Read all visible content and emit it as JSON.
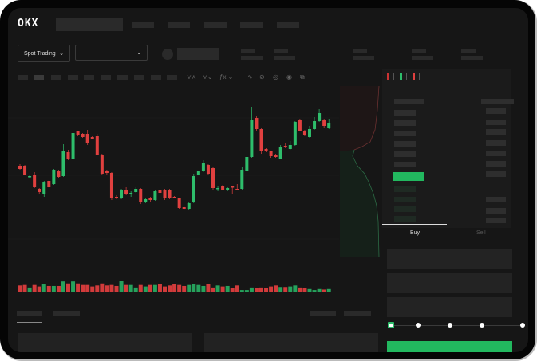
{
  "header": {
    "logo": "OKX"
  },
  "toolbar": {
    "market_type": "Spot Trading"
  },
  "order_panel": {
    "buy_tab": "Buy",
    "sell_tab": "Sell",
    "active_tab": "Buy"
  },
  "colors": {
    "up": "#2ebd6b",
    "down": "#e0403f",
    "background": "#161616",
    "buy_button": "#22b85f"
  },
  "icons": [
    "chevron-down-icon",
    "line-tool-icon",
    "pencil-icon",
    "brush-icon",
    "target-icon",
    "fullscreen-icon",
    "orderbook-both-icon",
    "orderbook-buy-icon",
    "orderbook-sell-icon"
  ],
  "chart_data": {
    "type": "candlestick",
    "title": "",
    "xlabel": "",
    "ylabel": "",
    "ylim": [
      0,
      135
    ],
    "candles": [
      [
        57,
        59,
        52,
        53
      ],
      [
        57,
        58,
        45,
        46
      ],
      [
        43,
        45,
        42,
        44
      ],
      [
        45,
        49,
        29,
        30
      ],
      [
        28,
        29,
        22,
        24
      ],
      [
        22,
        38,
        18,
        37
      ],
      [
        38,
        39,
        29,
        30
      ],
      [
        34,
        53,
        33,
        52
      ],
      [
        51,
        52,
        42,
        43
      ],
      [
        44,
        84,
        43,
        75
      ],
      [
        74,
        77,
        64,
        65
      ],
      [
        65,
        112,
        64,
        98
      ],
      [
        100,
        101,
        94,
        95
      ],
      [
        97,
        98,
        92,
        93
      ],
      [
        97,
        102,
        83,
        85
      ],
      [
        93,
        94,
        90,
        91
      ],
      [
        94,
        97,
        70,
        71
      ],
      [
        71,
        72,
        46,
        47
      ],
      [
        51,
        52,
        45,
        48
      ],
      [
        48,
        49,
        14,
        17
      ],
      [
        18,
        20,
        15,
        16
      ],
      [
        17,
        28,
        15,
        26
      ],
      [
        27,
        30,
        20,
        22
      ],
      [
        23,
        25,
        18,
        23
      ],
      [
        24,
        30,
        23,
        28
      ],
      [
        28,
        29,
        9,
        11
      ],
      [
        11,
        16,
        10,
        15
      ],
      [
        17,
        18,
        12,
        14
      ],
      [
        14,
        27,
        13,
        25
      ],
      [
        26,
        27,
        22,
        23
      ],
      [
        27,
        28,
        14,
        16
      ],
      [
        27,
        28,
        15,
        17
      ],
      [
        18,
        19,
        16,
        17
      ],
      [
        16,
        17,
        3,
        4
      ],
      [
        5,
        6,
        2,
        3
      ],
      [
        3,
        11,
        2,
        10
      ],
      [
        12,
        47,
        10,
        44
      ],
      [
        46,
        51,
        45,
        50
      ],
      [
        50,
        64,
        49,
        60
      ],
      [
        58,
        59,
        46,
        47
      ],
      [
        54,
        56,
        27,
        29
      ],
      [
        28,
        31,
        25,
        29
      ],
      [
        32,
        33,
        26,
        27
      ],
      [
        26,
        30,
        25,
        29
      ],
      [
        31,
        32,
        22,
        30
      ],
      [
        28,
        34,
        27,
        27
      ],
      [
        28,
        55,
        27,
        52
      ],
      [
        51,
        69,
        50,
        68
      ],
      [
        68,
        131,
        67,
        115
      ],
      [
        117,
        120,
        101,
        103
      ],
      [
        103,
        104,
        72,
        75
      ],
      [
        78,
        79,
        74,
        75
      ],
      [
        75,
        76,
        67,
        69
      ],
      [
        71,
        72,
        67,
        68
      ],
      [
        66,
        83,
        65,
        80
      ],
      [
        82,
        86,
        79,
        80
      ],
      [
        78,
        88,
        77,
        83
      ],
      [
        83,
        113,
        82,
        112
      ],
      [
        114,
        116,
        100,
        101
      ],
      [
        101,
        102,
        94,
        95
      ],
      [
        93,
        107,
        92,
        103
      ],
      [
        103,
        118,
        102,
        113
      ],
      [
        113,
        128,
        112,
        123
      ],
      [
        114,
        116,
        104,
        107
      ],
      [
        104,
        116,
        103,
        111
      ]
    ],
    "volume": [
      12,
      13,
      8,
      13,
      10,
      15,
      11,
      11,
      11,
      20,
      16,
      20,
      16,
      13,
      13,
      10,
      12,
      16,
      12,
      13,
      11,
      21,
      13,
      13,
      8,
      13,
      10,
      13,
      13,
      15,
      10,
      12,
      15,
      13,
      11,
      13,
      15,
      13,
      11,
      15,
      8,
      12,
      10,
      11,
      7,
      12,
      3,
      3,
      8,
      7,
      8,
      7,
      10,
      12,
      9,
      9,
      10,
      12,
      8,
      7,
      5,
      3,
      5,
      4,
      5
    ]
  }
}
